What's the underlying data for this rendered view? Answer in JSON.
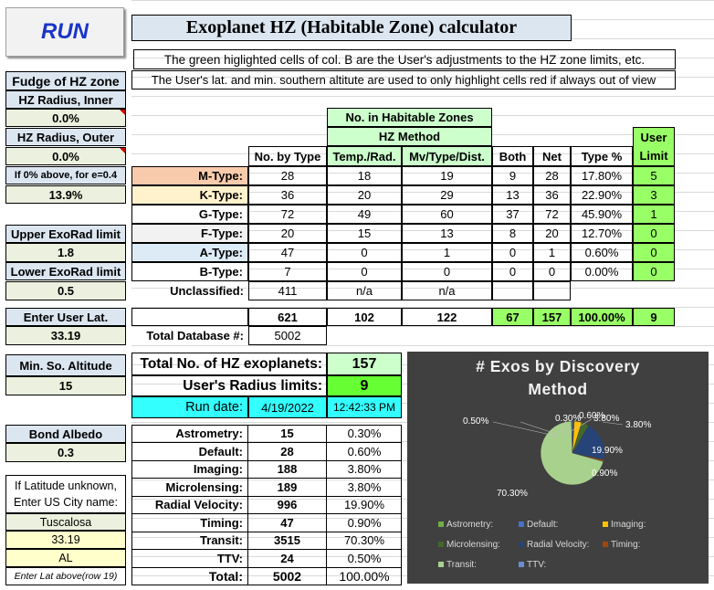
{
  "run_button": "RUN",
  "title": "Exoplanet HZ (Habitable Zone) calculator",
  "note1": "The green higlighted cells of col. B are the User's adjustments to the HZ zone limits, etc.",
  "note2": "The User's lat. and min. southern altitute are used to only highlight cells red if always out of view",
  "left": {
    "fudge": "Fudge of HZ zone",
    "inner_label": "HZ Radius, Inner",
    "inner_val": "0.0%",
    "outer_label": "HZ Radius, Outer",
    "outer_val": "0.0%",
    "ecc_label": "If 0% above, for e=0.4",
    "ecc_val": "13.9%",
    "upper_label": "Upper ExoRad limit",
    "upper_val": "1.8",
    "lower_label": "Lower ExoRad limit",
    "lower_val": "0.5",
    "lat_label": "Enter User Lat.",
    "lat_val": "33.19",
    "alt_label": "Min. So. Altitude",
    "alt_val": "15",
    "albedo_label": "Bond Albedo",
    "albedo_val": "0.3",
    "city1": "If Latitude unknown,",
    "city2": "Enter US City name:",
    "city": "Tuscalosa",
    "city_lat": "33.19",
    "state": "AL",
    "enter_note": "Enter Lat above(row 19)"
  },
  "table": {
    "group_header": "No. in Habitable Zones",
    "method_header": "HZ Method",
    "headers": [
      "No. by Type",
      "Temp./Rad.",
      "Mv/Type/Dist.",
      "Both",
      "Net",
      "Type %"
    ],
    "user_limit": [
      "User",
      "Limit"
    ],
    "rows": [
      {
        "type": "M-Type:",
        "n": "28",
        "t": "18",
        "m": "19",
        "both": "9",
        "net": "28",
        "pct": "17.80%",
        "u": "5"
      },
      {
        "type": "K-Type:",
        "n": "36",
        "t": "20",
        "m": "29",
        "both": "13",
        "net": "36",
        "pct": "22.90%",
        "u": "3"
      },
      {
        "type": "G-Type:",
        "n": "72",
        "t": "49",
        "m": "60",
        "both": "37",
        "net": "72",
        "pct": "45.90%",
        "u": "1"
      },
      {
        "type": "F-Type:",
        "n": "20",
        "t": "15",
        "m": "13",
        "both": "8",
        "net": "20",
        "pct": "12.70%",
        "u": "0"
      },
      {
        "type": "A-Type:",
        "n": "47",
        "t": "0",
        "m": "1",
        "both": "0",
        "net": "1",
        "pct": "0.60%",
        "u": "0"
      },
      {
        "type": "B-Type:",
        "n": "7",
        "t": "0",
        "m": "0",
        "both": "0",
        "net": "0",
        "pct": "0.00%",
        "u": "0"
      }
    ],
    "unclassified": {
      "type": "Unclassified:",
      "n": "411",
      "t": "n/a",
      "m": "n/a"
    },
    "totals": {
      "n": "621",
      "t": "102",
      "m": "122",
      "both": "67",
      "net": "157",
      "pct": "100.00%",
      "u": "9"
    },
    "total_db_label": "Total Database #:",
    "total_db": "5002"
  },
  "summary": {
    "total_hz_label": "Total No. of HZ exoplanets:",
    "total_hz": "157",
    "user_radius_label": "User's Radius limits:",
    "user_radius": "9",
    "run_date_label": "Run date:",
    "run_date": "4/19/2022",
    "run_time": "12:42:33 PM"
  },
  "methods": [
    {
      "name": "Astrometry:",
      "n": "15",
      "pct": "0.30%"
    },
    {
      "name": "Default:",
      "n": "28",
      "pct": "0.60%"
    },
    {
      "name": "Imaging:",
      "n": "188",
      "pct": "3.80%"
    },
    {
      "name": "Microlensing:",
      "n": "189",
      "pct": "3.80%"
    },
    {
      "name": "Radial Velocity:",
      "n": "996",
      "pct": "19.90%"
    },
    {
      "name": "Timing:",
      "n": "47",
      "pct": "0.90%"
    },
    {
      "name": "Transit:",
      "n": "3515",
      "pct": "70.30%"
    },
    {
      "name": "TTV:",
      "n": "24",
      "pct": "0.50%"
    }
  ],
  "methods_total": {
    "name": "Total:",
    "n": "5002",
    "pct": "100.00%"
  },
  "chart_data": {
    "type": "pie",
    "title": "# Exos by Discovery Method",
    "categories": [
      "Astrometry:",
      "Default:",
      "Imaging:",
      "Microlensing:",
      "Radial Velocity:",
      "Timing:",
      "Transit:",
      "TTV:"
    ],
    "values": [
      0.3,
      0.6,
      3.8,
      3.8,
      19.9,
      0.9,
      70.3,
      0.5
    ],
    "labels": [
      "0.30%",
      "0.60%",
      "3.80%",
      "3.80%",
      "19.90%",
      "0.90%",
      "70.30%",
      "0.50%"
    ],
    "colors": [
      "#70ad47",
      "#4472c4",
      "#ffc000",
      "#43682b",
      "#264478",
      "#9e480e",
      "#a9d18e",
      "#698ed0"
    ],
    "legend": "bottom"
  }
}
